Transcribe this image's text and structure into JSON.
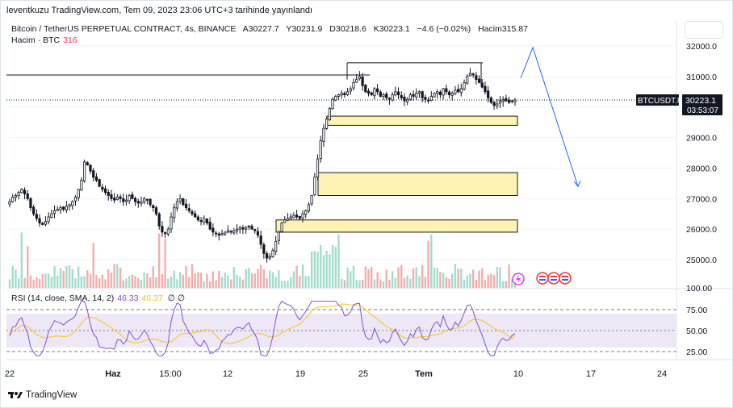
{
  "header": {
    "publisher_line": "leventkuzu TradingView.com, Tem 09, 2023 23:06 UTC+3 tarihinde yayınlandı"
  },
  "legend": {
    "symbol": "Bitcoin / TetherUS PERPETUAL CONTRACT, 4s, BINANCE",
    "open": "A30227.7",
    "high": "Y30231.9",
    "low": "D30218.6",
    "close": "K30223.1",
    "change": "−4.6 (−0.02%)",
    "volume_inline": "Hacim315.87",
    "volume_label": "Hacim · BTC",
    "volume_value": "316"
  },
  "rsi": {
    "label": "RSI (14, close, SMA, 14, 2)",
    "value": "46.33",
    "ma_value": "46.37",
    "extra": "∅ ∅"
  },
  "price_tag": {
    "symbol": "BTCUSDT.P",
    "price": "30223.1",
    "countdown": "03:53:07"
  },
  "colors": {
    "up": "#131722",
    "grid": "#f0f3fa",
    "volume": "#b2b5be",
    "volume_down": "#ef9a9a",
    "volume_up": "#8cd3bf",
    "zone_fill": "#fff3b3",
    "arrow": "#2962ff",
    "rsi_line": "#7e57c2",
    "rsi_ma": "#f7c325",
    "rsi_band": "#ede7f6"
  },
  "footer": {
    "brand": "TradingView"
  },
  "chart_data": {
    "type": "candlestick",
    "timeframe": "4s",
    "y_axis_ticks": [
      32000,
      31000,
      30000,
      29000,
      28000,
      27000,
      26000,
      25000
    ],
    "y_axis_labels": [
      "32000.0",
      "31000.0",
      "30000.0",
      "29000.0",
      "28000.0",
      "27000.0",
      "26000.0",
      "25000.0"
    ],
    "ylim": [
      24700,
      32300
    ],
    "x_axis_labels": [
      "22",
      "Haz",
      "15:00",
      "12",
      "19",
      "25",
      "Tem",
      "10",
      "17",
      "24"
    ],
    "close_path": [
      26900,
      27050,
      27100,
      27200,
      27300,
      27150,
      27000,
      26700,
      26500,
      26350,
      26200,
      26150,
      26250,
      26400,
      26500,
      26600,
      26650,
      26700,
      26650,
      26750,
      26800,
      26900,
      27050,
      27300,
      27600,
      28200,
      28100,
      27900,
      27700,
      27600,
      27400,
      27300,
      27200,
      27100,
      27000,
      26950,
      27050,
      27000,
      26900,
      26950,
      27100,
      27000,
      26900,
      26850,
      26900,
      27000,
      26950,
      26800,
      26700,
      26500,
      26100,
      25900,
      25850,
      26000,
      26400,
      26700,
      26900,
      27000,
      26800,
      26700,
      26600,
      26500,
      26400,
      26300,
      26250,
      26350,
      26200,
      26000,
      25900,
      25850,
      25800,
      25850,
      25900,
      25950,
      25900,
      25950,
      26000,
      26050,
      26000,
      26050,
      26100,
      26000,
      25950,
      25800,
      25500,
      25200,
      25050,
      25100,
      25300,
      25600,
      25900,
      26200,
      26300,
      26350,
      26400,
      26450,
      26400,
      26350,
      26500,
      26600,
      26800,
      27100,
      27700,
      28300,
      28900,
      29300,
      29600,
      29950,
      30250,
      30350,
      30400,
      30450,
      30400,
      30500,
      30600,
      30800,
      30900,
      31000,
      30700,
      30500,
      30450,
      30400,
      30600,
      30500,
      30350,
      30400,
      30300,
      30250,
      30400,
      30500,
      30400,
      30300,
      30200,
      30250,
      30400,
      30350,
      30450,
      30500,
      30300,
      30250,
      30200,
      30350,
      30450,
      30500,
      30400,
      30600,
      30500,
      30400,
      30450,
      30550,
      30500,
      30600,
      30800,
      31000,
      31100,
      31050,
      30900,
      30800,
      30650,
      30500,
      30300,
      30150,
      30050,
      30100,
      30200,
      30250,
      30200,
      30150,
      30200,
      30230
    ],
    "rsi_ticks": [
      75,
      50,
      25
    ],
    "rsi_labels": [
      "75.00",
      "50.00",
      "25.00"
    ],
    "rsi_band": [
      30,
      70
    ],
    "rsi_last": 46.33,
    "rsi_ma_last": 46.37,
    "resistance_line": 31050,
    "range_top": 31450,
    "demand_zones": [
      {
        "from": 29400,
        "to": 29700
      },
      {
        "from": 27100,
        "to": 27850
      },
      {
        "from": 25900,
        "to": 26300
      }
    ],
    "projection": [
      {
        "p": 30950
      },
      {
        "p": 31950
      },
      {
        "p": 27400
      }
    ]
  }
}
